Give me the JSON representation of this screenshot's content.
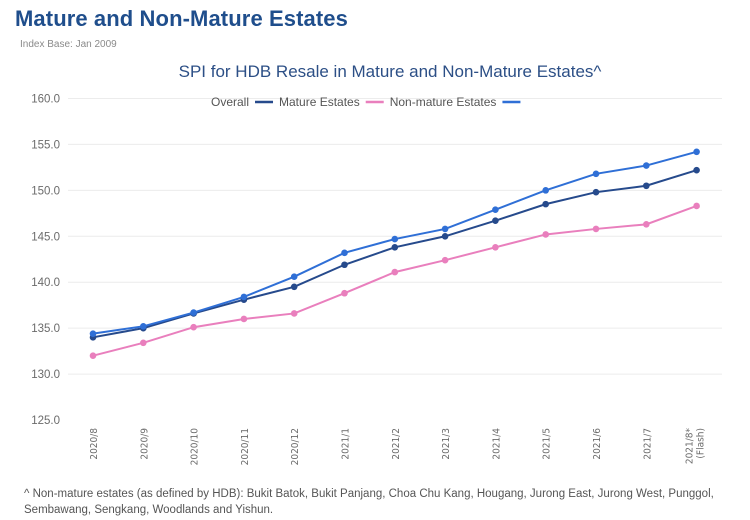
{
  "header": {
    "title": "Mature and Non-Mature Estates",
    "subtitle": "Index Base: Jan 2009"
  },
  "footnote": "^ Non-mature estates (as defined by HDB): Bukit Batok, Bukit Panjang, Choa Chu Kang, Hougang, Jurong East, Jurong West, Punggol, Sembawang, Sengkang, Woodlands and Yishun.",
  "chart_data": {
    "type": "line",
    "title": "SPI for HDB Resale in Mature and Non-Mature Estates^",
    "xlabel": "",
    "ylabel": "",
    "ylim": [
      125,
      160
    ],
    "yticks": [
      125,
      130,
      135,
      140,
      145,
      150,
      155,
      160
    ],
    "ytick_labels": [
      "125.0",
      "130.0",
      "135.0",
      "140.0",
      "145.0",
      "150.0",
      "155.0",
      "160.0"
    ],
    "grid": true,
    "legend_position": "top-center",
    "categories": [
      "2020/8",
      "2020/9",
      "2020/10",
      "2020/11",
      "2020/12",
      "2021/1",
      "2021/2",
      "2021/3",
      "2021/4",
      "2021/5",
      "2021/6",
      "2021/7",
      "2021/8*"
    ],
    "category_sublabels": [
      "",
      "",
      "",
      "",
      "",
      "",
      "",
      "",
      "",
      "",
      "",
      "",
      "(Flash)"
    ],
    "series": [
      {
        "name": "Overall",
        "color": "#264a8c",
        "values": [
          134.0,
          135.0,
          136.6,
          138.1,
          139.5,
          141.9,
          143.8,
          145.0,
          146.7,
          148.5,
          149.8,
          150.5,
          152.2
        ]
      },
      {
        "name": "Mature Estates",
        "color": "#e97fbd",
        "values": [
          132.0,
          133.4,
          135.1,
          136.0,
          136.6,
          138.8,
          141.1,
          142.4,
          143.8,
          145.2,
          145.8,
          146.3,
          148.3
        ]
      },
      {
        "name": "Non-mature Estates",
        "color": "#2f6fd6",
        "values": [
          134.4,
          135.2,
          136.7,
          138.4,
          140.6,
          143.2,
          144.7,
          145.8,
          147.9,
          150.0,
          151.8,
          152.7,
          154.2
        ]
      }
    ]
  }
}
